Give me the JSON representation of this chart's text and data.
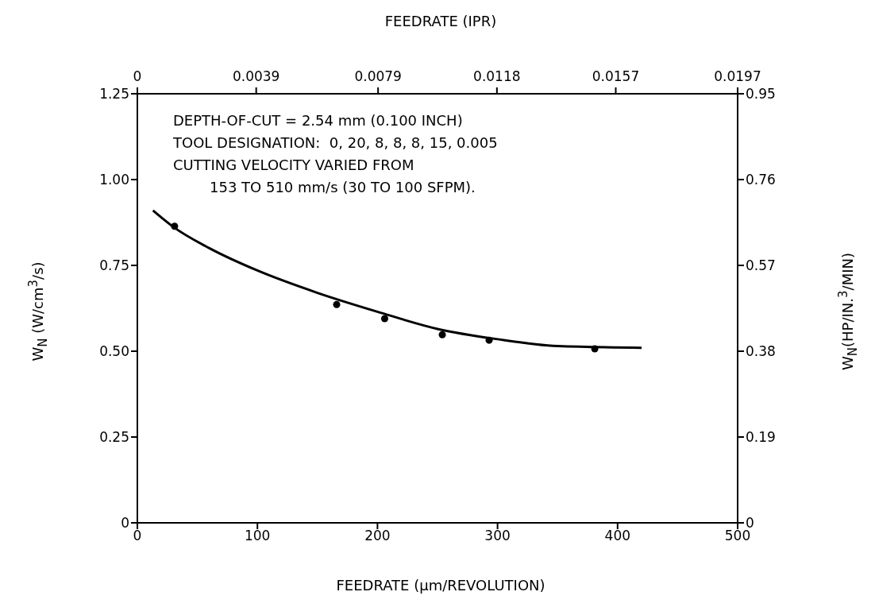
{
  "chart_data": {
    "type": "scatter",
    "xlabel": "FEEDRATE (µm/REVOLUTION)",
    "x2label": "FEEDRATE (IPR)",
    "ylabel": "W$_{N}$ (W/cm$^{3}$/s)",
    "y2label": "W$_{N}$(HP/IN.$^{3}$/MIN)",
    "annotations": [
      "DEPTH-OF-CUT = 2.54 mm (0.100 INCH)",
      "TOOL DESIGNATION:  0, 20, 8, 8, 8, 15, 0.005",
      "CUTTING VELOCITY VARIED FROM",
      "153 TO 510 mm/s (30 TO 100 SFPM)."
    ],
    "series": [
      {
        "color": "#000000",
        "marker": "circle",
        "x": [
          31,
          166,
          206,
          254,
          293,
          381
        ],
        "values": [
          0.864,
          0.636,
          0.595,
          0.548,
          0.532,
          0.507
        ]
      },
      {
        "type": "line",
        "color": "#000000",
        "line_style": "solid",
        "x": [
          13,
          30,
          60,
          100,
          150,
          200,
          250,
          300,
          350,
          420
        ],
        "values": [
          0.91,
          0.862,
          0.8,
          0.735,
          0.67,
          0.615,
          0.565,
          0.535,
          0.515,
          0.51
        ]
      }
    ],
    "xlim": [
      0,
      500
    ],
    "xticks": [
      0,
      100,
      200,
      300,
      400,
      500
    ],
    "x2lim": [
      0,
      0.0197
    ],
    "x2ticks": [
      0,
      0.0039,
      0.0079,
      0.0118,
      0.0157,
      0.0197
    ],
    "ylim": [
      0,
      1.25
    ],
    "yticks": [
      0,
      0.25,
      {
        "value": 0.5,
        "label": "0.50"
      },
      0.75,
      {
        "value": 1,
        "label": "1.00"
      },
      1.25
    ],
    "y2lim": [
      0,
      0.95
    ],
    "y2ticks": [
      0,
      0.19,
      0.38,
      0.57,
      0.76,
      0.95
    ],
    "grid": false,
    "legend": false
  }
}
